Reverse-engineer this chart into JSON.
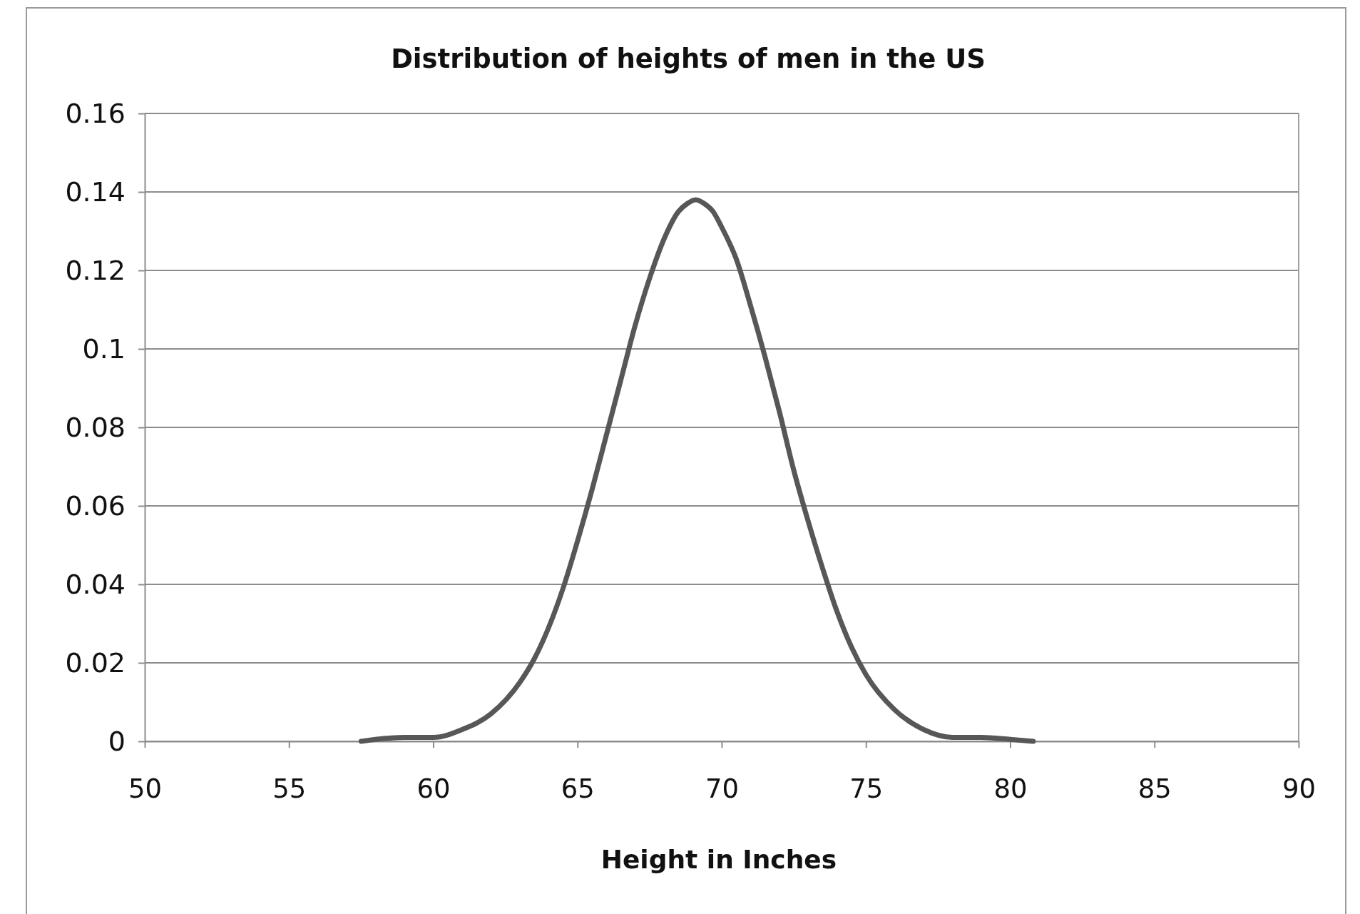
{
  "chart_data": {
    "type": "line",
    "title": "Distribution of heights of men in the US",
    "xlabel": "Height in Inches",
    "x": [
      57.5,
      58,
      59,
      60,
      61,
      62,
      63,
      63.5,
      64,
      64.5,
      65,
      65.5,
      66,
      66.5,
      67,
      67.5,
      68,
      68.5,
      68.8,
      69.1,
      69.4,
      69.7,
      70,
      70.5,
      71,
      71.5,
      72,
      72.5,
      73,
      73.5,
      74,
      74.5,
      75,
      76,
      77,
      78,
      79,
      80,
      80.8
    ],
    "series": [
      {
        "color": "#575757",
        "values": [
          0,
          0.0005,
          0.001,
          0.001,
          0.003,
          0.007,
          0.015,
          0.021,
          0.029,
          0.039,
          0.051,
          0.064,
          0.078,
          0.092,
          0.106,
          0.118,
          0.128,
          0.135,
          0.137,
          0.138,
          0.137,
          0.135,
          0.131,
          0.123,
          0.111,
          0.098,
          0.084,
          0.069,
          0.056,
          0.044,
          0.033,
          0.024,
          0.017,
          0.008,
          0.003,
          0.001,
          0.001,
          0.0005,
          0
        ]
      }
    ],
    "xlim": [
      50,
      90
    ],
    "xticks": [
      50,
      55,
      60,
      65,
      70,
      75,
      80,
      85,
      90
    ],
    "ylim": [
      0,
      0.16
    ],
    "yticks": [
      0,
      0.02,
      0.04,
      0.06,
      0.08,
      0.1,
      0.12,
      0.14,
      0.16
    ],
    "grid": "y"
  }
}
